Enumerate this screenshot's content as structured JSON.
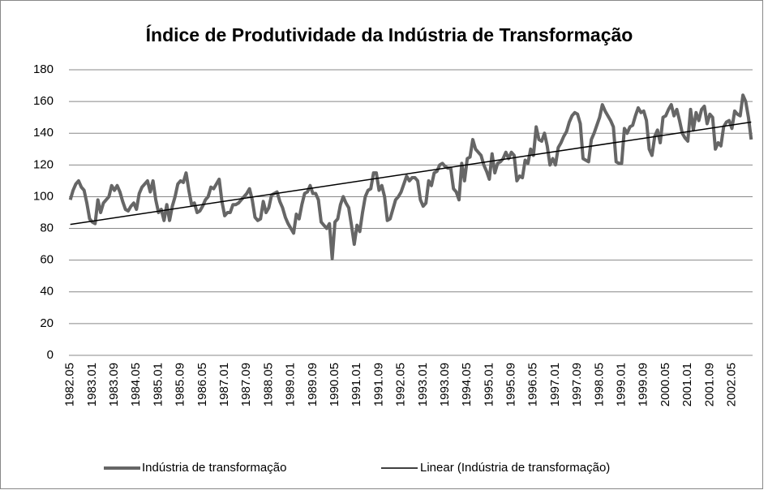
{
  "chart_data": {
    "type": "line",
    "title": "Índice de Produtividade da Indústria de Transformação",
    "categories": [
      "1982.05",
      null,
      null,
      null,
      null,
      null,
      null,
      null,
      "1983.01",
      null,
      null,
      null,
      null,
      null,
      null,
      null,
      "1983.09",
      null,
      null,
      null,
      null,
      null,
      null,
      null,
      "1984.05",
      null,
      null,
      null,
      null,
      null,
      null,
      null,
      "1985.01",
      null,
      null,
      null,
      null,
      null,
      null,
      null,
      "1985.09",
      null,
      null,
      null,
      null,
      null,
      null,
      null,
      "1986.05",
      null,
      null,
      null,
      null,
      null,
      null,
      null,
      "1987.01",
      null,
      null,
      null,
      null,
      null,
      null,
      null,
      "1987.09",
      null,
      null,
      null,
      null,
      null,
      null,
      null,
      "1988.05",
      null,
      null,
      null,
      null,
      null,
      null,
      null,
      "1989.01",
      null,
      null,
      null,
      null,
      null,
      null,
      null,
      "1989.09",
      null,
      null,
      null,
      null,
      null,
      null,
      null,
      "1990.05",
      null,
      null,
      null,
      null,
      null,
      null,
      null,
      "1991.01",
      null,
      null,
      null,
      null,
      null,
      null,
      null,
      "1991.09",
      null,
      null,
      null,
      null,
      null,
      null,
      null,
      "1992.05",
      null,
      null,
      null,
      null,
      null,
      null,
      null,
      "1993.01",
      null,
      null,
      null,
      null,
      null,
      null,
      null,
      "1993.09",
      null,
      null,
      null,
      null,
      null,
      null,
      null,
      "1994.05",
      null,
      null,
      null,
      null,
      null,
      null,
      null,
      "1995.01",
      null,
      null,
      null,
      null,
      null,
      null,
      null,
      "1995.09",
      null,
      null,
      null,
      null,
      null,
      null,
      null,
      "1996.05",
      null,
      null,
      null,
      null,
      null,
      null,
      null,
      "1997.01",
      null,
      null,
      null,
      null,
      null,
      null,
      null,
      "1997.09",
      null,
      null,
      null,
      null,
      null,
      null,
      null,
      "1998.05",
      null,
      null,
      null,
      null,
      null,
      null,
      null,
      "1999.01",
      null,
      null,
      null,
      null,
      null,
      null,
      null,
      "1999.09",
      null,
      null,
      null,
      null,
      null,
      null,
      null,
      "2000.05",
      null,
      null,
      null,
      null,
      null,
      null,
      null,
      "2001.01",
      null,
      null,
      null,
      null,
      null,
      null,
      null,
      "2001.09",
      null,
      null,
      null,
      null,
      null,
      null,
      null,
      "2002.05",
      null,
      null,
      null,
      null,
      null,
      null,
      null
    ],
    "series": [
      {
        "name": "Indústria de transformação",
        "color": "#666666",
        "values": [
          98,
          104,
          108,
          110,
          106,
          104,
          96,
          86,
          84,
          83,
          98,
          90,
          96,
          98,
          100,
          107,
          104,
          107,
          103,
          97,
          92,
          91,
          94,
          96,
          92,
          102,
          106,
          108,
          110,
          103,
          110,
          98,
          90,
          92,
          85,
          95,
          85,
          94,
          100,
          108,
          110,
          109,
          115,
          104,
          95,
          96,
          90,
          91,
          94,
          98,
          100,
          106,
          105,
          108,
          111,
          97,
          88,
          90,
          90,
          95,
          95,
          96,
          98,
          100,
          102,
          105,
          98,
          87,
          85,
          86,
          97,
          90,
          93,
          101,
          102,
          103,
          97,
          93,
          87,
          83,
          80,
          77,
          89,
          86,
          95,
          102,
          103,
          107,
          102,
          102,
          98,
          84,
          82,
          80,
          83,
          61,
          84,
          86,
          95,
          100,
          96,
          93,
          82,
          70,
          82,
          78,
          90,
          100,
          104,
          105,
          115,
          115,
          104,
          107,
          100,
          85,
          86,
          92,
          98,
          100,
          103,
          108,
          113,
          110,
          112,
          112,
          110,
          98,
          94,
          96,
          110,
          107,
          115,
          116,
          120,
          121,
          119,
          118,
          118,
          105,
          103,
          98,
          121,
          110,
          124,
          125,
          136,
          130,
          128,
          126,
          120,
          116,
          111,
          127,
          115,
          121,
          122,
          124,
          128,
          124,
          128,
          126,
          110,
          113,
          112,
          123,
          121,
          130,
          126,
          144,
          136,
          135,
          140,
          132,
          120,
          124,
          120,
          131,
          134,
          138,
          141,
          147,
          151,
          153,
          152,
          146,
          124,
          123,
          122,
          136,
          140,
          145,
          150,
          158,
          154,
          151,
          148,
          144,
          122,
          121,
          121,
          143,
          140,
          144,
          145,
          151,
          156,
          153,
          154,
          148,
          130,
          126,
          138,
          142,
          134,
          150,
          151,
          155,
          158,
          151,
          155,
          148,
          140,
          137,
          135,
          155,
          142,
          153,
          148,
          155,
          157,
          146,
          152,
          150,
          130,
          134,
          132,
          144,
          147,
          148,
          143,
          154,
          152,
          151,
          164,
          160,
          150,
          136
        ]
      }
    ],
    "trendline": {
      "name": "Linear (Indústria de transformação)",
      "color": "#000000",
      "start": 82.5,
      "end": 147
    },
    "ylim": [
      0,
      180
    ],
    "yticks": [
      0,
      20,
      40,
      60,
      80,
      100,
      120,
      140,
      160,
      180
    ],
    "grid": true,
    "legend": "bottom"
  }
}
